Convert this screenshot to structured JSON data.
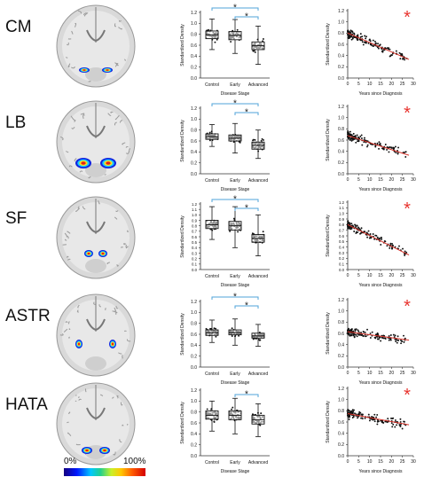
{
  "colorbar": {
    "min_label": "0%",
    "max_label": "100%"
  },
  "colors": {
    "significance_star": "#e8322d",
    "bracket": "#4fa3d9",
    "trend": "#d9342b",
    "point": "#111111"
  },
  "chart_data": [
    {
      "region": "CM",
      "type": "boxplot",
      "xlabel": "Disease Stage",
      "ylabel": "Standardized Density",
      "categories": [
        "Control",
        "Early",
        "Advanced"
      ],
      "ylim": [
        0,
        1.2
      ],
      "yticks": [
        "0.0",
        "0.2",
        "0.4",
        "0.6",
        "0.8",
        "1.0",
        "1.2"
      ],
      "boxes": [
        {
          "min": 0.52,
          "q1": 0.72,
          "median": 0.79,
          "q3": 0.86,
          "max": 1.08
        },
        {
          "min": 0.45,
          "q1": 0.7,
          "median": 0.78,
          "q3": 0.85,
          "max": 1.07
        },
        {
          "min": 0.25,
          "q1": 0.52,
          "median": 0.59,
          "q3": 0.66,
          "max": 0.95
        }
      ],
      "brackets": [
        {
          "from": 0,
          "to": 2,
          "label": "*"
        },
        {
          "from": 1,
          "to": 2,
          "label": "*"
        }
      ]
    },
    {
      "region": "CM",
      "type": "scatter",
      "xlabel": "Years since Diagnosis",
      "ylabel": "Standardized Density",
      "xlim": [
        0,
        30
      ],
      "ylim": [
        0,
        1.2
      ],
      "xticks": [
        "0",
        "5",
        "10",
        "15",
        "20",
        "25",
        "30"
      ],
      "yticks": [
        "0.0",
        "0.2",
        "0.4",
        "0.6",
        "0.8",
        "1.0",
        "1.2"
      ],
      "annotation": "*",
      "trend": {
        "x": [
          0,
          28
        ],
        "y": [
          0.8,
          0.33
        ]
      }
    },
    {
      "region": "LB",
      "type": "boxplot",
      "xlabel": "Disease Stage",
      "ylabel": "Standardized Density",
      "categories": [
        "Control",
        "Early",
        "Advanced"
      ],
      "ylim": [
        0,
        1.2
      ],
      "yticks": [
        "0.0",
        "0.2",
        "0.4",
        "0.6",
        "0.8",
        "1.0",
        "1.2"
      ],
      "boxes": [
        {
          "min": 0.5,
          "q1": 0.63,
          "median": 0.68,
          "q3": 0.73,
          "max": 0.9
        },
        {
          "min": 0.38,
          "q1": 0.6,
          "median": 0.65,
          "q3": 0.71,
          "max": 0.92
        },
        {
          "min": 0.28,
          "q1": 0.45,
          "median": 0.52,
          "q3": 0.58,
          "max": 0.8
        }
      ],
      "brackets": [
        {
          "from": 0,
          "to": 2,
          "label": "*"
        },
        {
          "from": 1,
          "to": 2,
          "label": "*"
        }
      ]
    },
    {
      "region": "LB",
      "type": "scatter",
      "xlabel": "Years since Diagnosis",
      "ylabel": "Standardized Density",
      "xlim": [
        0,
        30
      ],
      "ylim": [
        0,
        1.2
      ],
      "xticks": [
        "0",
        "5",
        "10",
        "15",
        "20",
        "25",
        "30"
      ],
      "yticks": [
        "0.0",
        "0.2",
        "0.4",
        "0.6",
        "0.8",
        "1.0",
        "1.2"
      ],
      "annotation": "*",
      "trend": {
        "x": [
          0,
          28
        ],
        "y": [
          0.68,
          0.33
        ]
      }
    },
    {
      "region": "SF",
      "type": "boxplot",
      "xlabel": "Disease Stage",
      "ylabel": "Standardized Density",
      "categories": [
        "Control",
        "Early",
        "Advanced"
      ],
      "ylim": [
        0,
        1.2
      ],
      "yticks": [
        "0.0",
        "0.1",
        "0.2",
        "0.3",
        "0.4",
        "0.5",
        "0.6",
        "0.7",
        "0.8",
        "0.9",
        "1.0",
        "1.1",
        "1.2"
      ],
      "boxes": [
        {
          "min": 0.55,
          "q1": 0.75,
          "median": 0.82,
          "q3": 0.9,
          "max": 1.15
        },
        {
          "min": 0.4,
          "q1": 0.72,
          "median": 0.8,
          "q3": 0.88,
          "max": 1.15
        },
        {
          "min": 0.25,
          "q1": 0.5,
          "median": 0.57,
          "q3": 0.64,
          "max": 1.0
        }
      ],
      "brackets": [
        {
          "from": 0,
          "to": 2,
          "label": "*"
        },
        {
          "from": 1,
          "to": 2,
          "label": "*"
        }
      ]
    },
    {
      "region": "SF",
      "type": "scatter",
      "xlabel": "Years since Diagnosis",
      "ylabel": "Standardized Density",
      "xlim": [
        0,
        30
      ],
      "ylim": [
        0,
        1.2
      ],
      "xticks": [
        "0",
        "5",
        "10",
        "15",
        "20",
        "25",
        "30"
      ],
      "yticks": [
        "0.0",
        "0.1",
        "0.2",
        "0.3",
        "0.4",
        "0.5",
        "0.6",
        "0.7",
        "0.8",
        "0.9",
        "1.0",
        "1.1",
        "1.2"
      ],
      "annotation": "*",
      "trend": {
        "x": [
          0,
          28
        ],
        "y": [
          0.8,
          0.26
        ]
      }
    },
    {
      "region": "ASTR",
      "type": "boxplot",
      "xlabel": "Disease Stage",
      "ylabel": "Standardized Density",
      "categories": [
        "Control",
        "Early",
        "Advanced"
      ],
      "ylim": [
        0,
        1.2
      ],
      "yticks": [
        "0.0",
        "0.2",
        "0.4",
        "0.6",
        "0.8",
        "1.0",
        "1.2"
      ],
      "boxes": [
        {
          "min": 0.45,
          "q1": 0.58,
          "median": 0.63,
          "q3": 0.68,
          "max": 0.86
        },
        {
          "min": 0.4,
          "q1": 0.59,
          "median": 0.63,
          "q3": 0.68,
          "max": 0.88
        },
        {
          "min": 0.38,
          "q1": 0.53,
          "median": 0.57,
          "q3": 0.62,
          "max": 0.78
        }
      ],
      "brackets": [
        {
          "from": 0,
          "to": 2,
          "label": "*"
        },
        {
          "from": 1,
          "to": 2,
          "label": "*"
        }
      ]
    },
    {
      "region": "ASTR",
      "type": "scatter",
      "xlabel": "Years since Diagnosis",
      "ylabel": "Standardized Density",
      "xlim": [
        0,
        30
      ],
      "ylim": [
        0,
        1.2
      ],
      "xticks": [
        "0",
        "5",
        "10",
        "15",
        "20",
        "25",
        "30"
      ],
      "yticks": [
        "0.0",
        "0.2",
        "0.4",
        "0.6",
        "0.8",
        "1.0",
        "1.2"
      ],
      "annotation": "*",
      "trend": {
        "x": [
          0,
          28
        ],
        "y": [
          0.63,
          0.48
        ]
      }
    },
    {
      "region": "HATA",
      "type": "boxplot",
      "xlabel": "Disease Stage",
      "ylabel": "Standardized Density",
      "categories": [
        "Control",
        "Early",
        "Advanced"
      ],
      "ylim": [
        0,
        1.2
      ],
      "yticks": [
        "0.0",
        "0.2",
        "0.4",
        "0.6",
        "0.8",
        "1.0",
        "1.2"
      ],
      "boxes": [
        {
          "min": 0.45,
          "q1": 0.67,
          "median": 0.74,
          "q3": 0.82,
          "max": 1.0
        },
        {
          "min": 0.4,
          "q1": 0.66,
          "median": 0.74,
          "q3": 0.82,
          "max": 1.05
        },
        {
          "min": 0.35,
          "q1": 0.58,
          "median": 0.66,
          "q3": 0.74,
          "max": 0.95
        }
      ],
      "brackets": [
        {
          "from": 1,
          "to": 2,
          "label": "*"
        }
      ]
    },
    {
      "region": "HATA",
      "type": "scatter",
      "xlabel": "Years since Diagnosis",
      "ylabel": "Standardized Density",
      "xlim": [
        0,
        30
      ],
      "ylim": [
        0,
        1.2
      ],
      "xticks": [
        "0",
        "5",
        "10",
        "15",
        "20",
        "25",
        "30"
      ],
      "yticks": [
        "0.0",
        "0.2",
        "0.4",
        "0.6",
        "0.8",
        "1.0",
        "1.2"
      ],
      "annotation": "*",
      "trend": {
        "x": [
          0,
          28
        ],
        "y": [
          0.75,
          0.55
        ]
      }
    }
  ]
}
